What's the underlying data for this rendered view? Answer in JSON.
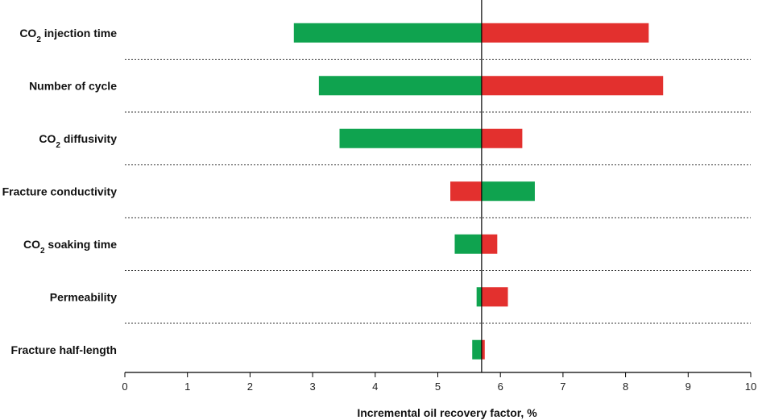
{
  "chart_data": {
    "type": "bar",
    "subtype": "tornado",
    "xlabel": "Incremental oil recovery factor, %",
    "xlim": [
      0,
      10
    ],
    "xticks": [
      0,
      1,
      2,
      3,
      4,
      5,
      6,
      7,
      8,
      9,
      10
    ],
    "tick_labels": [
      "0",
      "1",
      "2",
      "3",
      "4",
      "5",
      "6",
      "7",
      "8",
      "9",
      "10"
    ],
    "base_value": 5.7,
    "categories": [
      "CO2 injection time",
      "Number of cycle",
      "CO2 diffusivity",
      "Fracture conductivity",
      "CO2 soaking time",
      "Permeability",
      "Fracture half-length"
    ],
    "category_labels": [
      {
        "prefix": "CO",
        "sub": "2",
        "suffix": " injection time"
      },
      {
        "prefix": "Number of cycle",
        "sub": "",
        "suffix": ""
      },
      {
        "prefix": "CO",
        "sub": "2",
        "suffix": " diffusivity"
      },
      {
        "prefix": "Fracture conductivity",
        "sub": "",
        "suffix": ""
      },
      {
        "prefix": "CO",
        "sub": "2",
        "suffix": " soaking time"
      },
      {
        "prefix": "Permeability",
        "sub": "",
        "suffix": ""
      },
      {
        "prefix": "Fracture half-length",
        "sub": "",
        "suffix": ""
      }
    ],
    "series": [
      {
        "color": "#0fa34f",
        "values": [
          2.7,
          3.1,
          3.43,
          6.55,
          5.27,
          5.62,
          5.55
        ]
      },
      {
        "color": "#e3302e",
        "values": [
          8.37,
          8.6,
          6.35,
          5.2,
          5.95,
          6.12,
          5.75
        ]
      }
    ],
    "grid": false,
    "separators": "dotted"
  }
}
